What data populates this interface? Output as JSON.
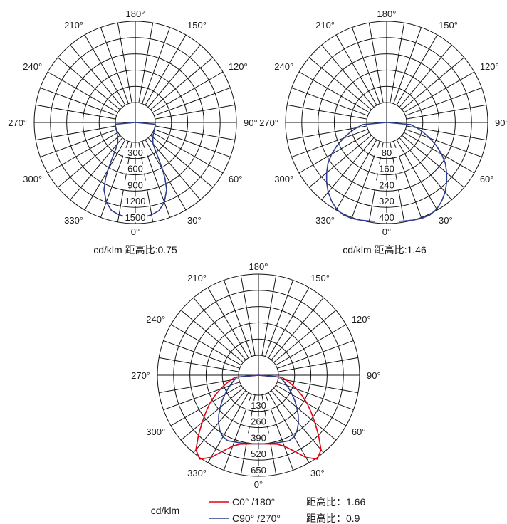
{
  "chart_data": [
    {
      "type": "polar",
      "units_label": "cd/klm",
      "caption": "cd/klm 距高比:0.75",
      "angle_labels": [
        "0°",
        "30°",
        "60°",
        "90°",
        "120°",
        "150°",
        "180°",
        "210°",
        "240°",
        "270°",
        "300°",
        "330°"
      ],
      "radial_ticks": [
        "300",
        "600",
        "900",
        "1200",
        "1500"
      ],
      "r_max": 1500,
      "series": [
        {
          "color": "#2c3d8f",
          "angles": [
            0,
            5,
            10,
            15,
            20,
            25,
            28,
            30,
            32,
            35,
            38,
            40,
            45,
            50,
            55,
            60,
            65,
            70,
            75,
            80,
            85,
            90
          ],
          "values": [
            1400,
            1390,
            1365,
            1320,
            1200,
            1000,
            800,
            640,
            470,
            300,
            190,
            140,
            90,
            55,
            35,
            20,
            12,
            8,
            5,
            3,
            1,
            0
          ]
        }
      ]
    },
    {
      "type": "polar",
      "units_label": "cd/klm",
      "caption": "cd/klm 距高比:1.46",
      "angle_labels": [
        "0°",
        "30°",
        "60°",
        "90°",
        "120°",
        "150°",
        "180°",
        "210°",
        "240°",
        "270°",
        "300°",
        "330°"
      ],
      "radial_ticks": [
        "80",
        "160",
        "240",
        "320",
        "400"
      ],
      "r_max": 400,
      "series": [
        {
          "color": "#2c3d8f",
          "angles": [
            0,
            5,
            10,
            15,
            20,
            25,
            30,
            35,
            40,
            45,
            50,
            55,
            60,
            65,
            70,
            75,
            80,
            85,
            90
          ],
          "values": [
            390,
            392,
            395,
            400,
            405,
            405,
            395,
            375,
            350,
            320,
            288,
            255,
            215,
            172,
            128,
            88,
            52,
            20,
            0
          ]
        }
      ]
    },
    {
      "type": "polar",
      "units_label": "cd/klm",
      "caption": "cd/klm",
      "angle_labels": [
        "0°",
        "30°",
        "60°",
        "90°",
        "120°",
        "150°",
        "180°",
        "210°",
        "240°",
        "270°",
        "300°",
        "330°"
      ],
      "radial_ticks": [
        "130",
        "260",
        "390",
        "520",
        "650"
      ],
      "r_max": 650,
      "series": [
        {
          "name": "C0° /180°",
          "legend_ratio": "距高比：1.66",
          "color": "#e60012",
          "angles": [
            0,
            5,
            10,
            15,
            20,
            25,
            30,
            35,
            40,
            45,
            50,
            55,
            60,
            65,
            70,
            75,
            80,
            85,
            90
          ],
          "values": [
            390,
            392,
            400,
            412,
            445,
            510,
            600,
            660,
            620,
            520,
            430,
            355,
            290,
            225,
            165,
            112,
            65,
            28,
            0
          ]
        },
        {
          "name": "C90° /270°",
          "legend_ratio": "距高比：0.9",
          "color": "#2c3d8f",
          "angles": [
            0,
            5,
            10,
            15,
            20,
            25,
            30,
            35,
            40,
            45,
            50,
            55,
            60,
            65,
            70,
            75,
            80,
            85,
            90
          ],
          "values": [
            390,
            392,
            396,
            402,
            408,
            420,
            410,
            380,
            338,
            290,
            240,
            195,
            152,
            115,
            82,
            55,
            32,
            14,
            0
          ]
        }
      ]
    }
  ]
}
